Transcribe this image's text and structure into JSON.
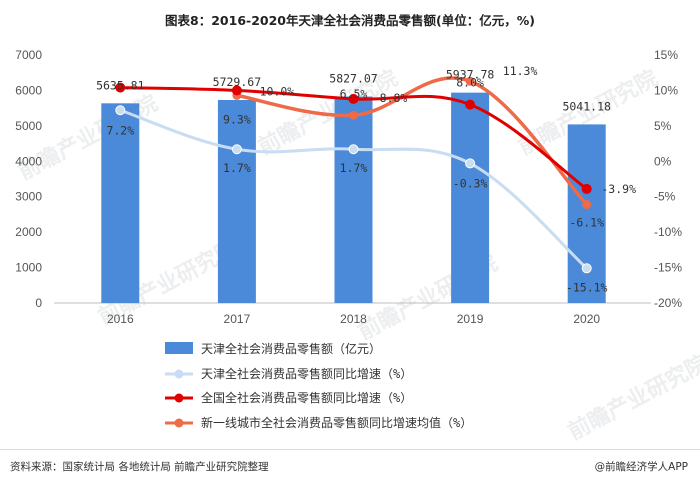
{
  "title": "图表8：2016-2020年天津全社会消费品零售额(单位：亿元，%)",
  "source_left": "资料来源：国家统计局 各地统计局 前瞻产业研究院整理",
  "source_right": "@前瞻经济学人APP",
  "watermark": "前瞻产业研究院",
  "colors": {
    "bar": "#4a8ad8",
    "tianjin_growth": "#c8dcf2",
    "national_growth": "#e00000",
    "tier1_growth": "#ee6a48"
  },
  "chart_data": {
    "type": "bar",
    "categories": [
      "2016",
      "2017",
      "2018",
      "2019",
      "2020"
    ],
    "y_left": {
      "ylim": [
        0,
        7000
      ],
      "ticks": [
        "0",
        "1000",
        "2000",
        "3000",
        "4000",
        "5000",
        "6000",
        "7000"
      ]
    },
    "y_right": {
      "ylim": [
        -20,
        15
      ],
      "ticks": [
        "-20%",
        "-15%",
        "-10%",
        "-5%",
        "0%",
        "5%",
        "10%",
        "15%"
      ]
    },
    "series": [
      {
        "name": "天津全社会消费品零售额（亿元）",
        "type": "bar",
        "axis": "left",
        "values": [
          5635.81,
          5729.67,
          5827.07,
          5937.78,
          5041.18
        ],
        "labels": [
          "5635.81",
          "5729.67",
          "5827.07",
          "5937.78",
          "5041.18"
        ]
      },
      {
        "name": "天津全社会消费品零售额同比增速（%）",
        "type": "line",
        "axis": "right",
        "values": [
          7.2,
          1.7,
          1.7,
          -0.3,
          -15.1
        ],
        "labels": [
          "7.2%",
          "1.7%",
          "1.7%",
          "-0.3%",
          "-15.1%"
        ]
      },
      {
        "name": "全国全社会消费品零售额同比增速（%）",
        "type": "line",
        "axis": "right",
        "values": [
          10.4,
          10.0,
          8.8,
          8.0,
          -3.9
        ],
        "labels": [
          "",
          "10.0%",
          "8.8%",
          "8.0%",
          "-3.9%"
        ]
      },
      {
        "name": "新一线城市全社会消费品零售额同比增速均值（%）",
        "type": "line",
        "axis": "right",
        "values": [
          null,
          9.3,
          6.5,
          11.3,
          -6.1
        ],
        "labels": [
          "",
          "9.3%",
          "6.5%",
          "11.3%",
          "-6.1%"
        ]
      }
    ]
  }
}
